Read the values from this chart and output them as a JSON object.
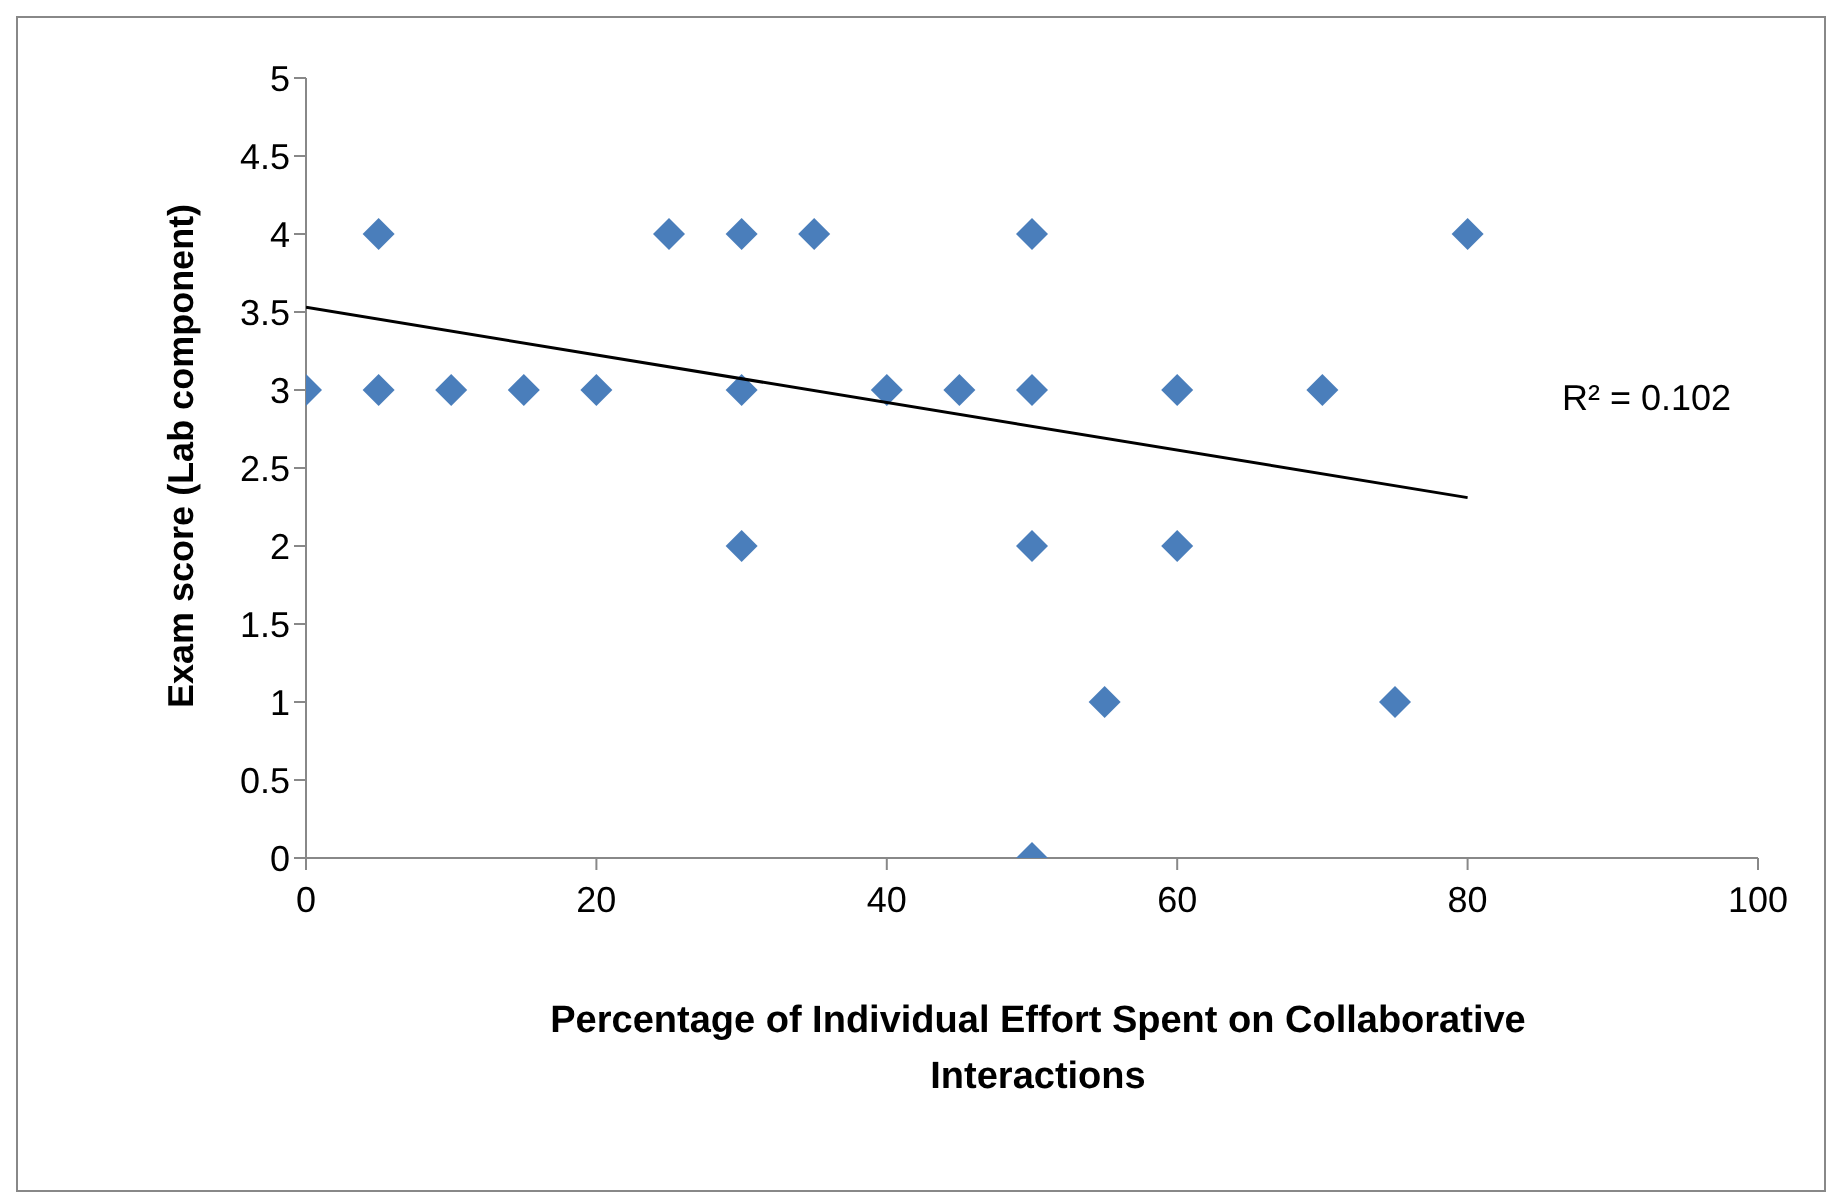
{
  "chart_data": {
    "type": "scatter",
    "xlabel": "Percentage of Individual Effort Spent on Collaborative Interactions",
    "ylabel": "Exam score (Lab component)",
    "xlim": [
      0,
      100
    ],
    "xticks": [
      0,
      20,
      40,
      60,
      80,
      100
    ],
    "ylim": [
      0,
      5
    ],
    "yticks": [
      0,
      0.5,
      1,
      1.5,
      2,
      2.5,
      3,
      3.5,
      4,
      4.5,
      5
    ],
    "grid": false,
    "legend": false,
    "annotations": [
      "R² = 0.102"
    ],
    "series": [
      {
        "marker": "diamond",
        "color": "#4a7ebb",
        "x": [
          0,
          5,
          5,
          10,
          15,
          20,
          25,
          30,
          30,
          30,
          35,
          40,
          45,
          50,
          50,
          50,
          50,
          55,
          60,
          60,
          70,
          75,
          80
        ],
        "values": [
          3,
          4,
          3,
          3,
          3,
          3,
          4,
          4,
          3,
          2,
          4,
          3,
          3,
          4,
          3,
          2,
          0,
          1,
          3,
          2,
          3,
          1,
          4
        ]
      },
      {
        "type": "line",
        "marker": "none",
        "color": "#000000",
        "x": [
          0,
          80
        ],
        "values": [
          3.53,
          2.31
        ]
      }
    ]
  }
}
